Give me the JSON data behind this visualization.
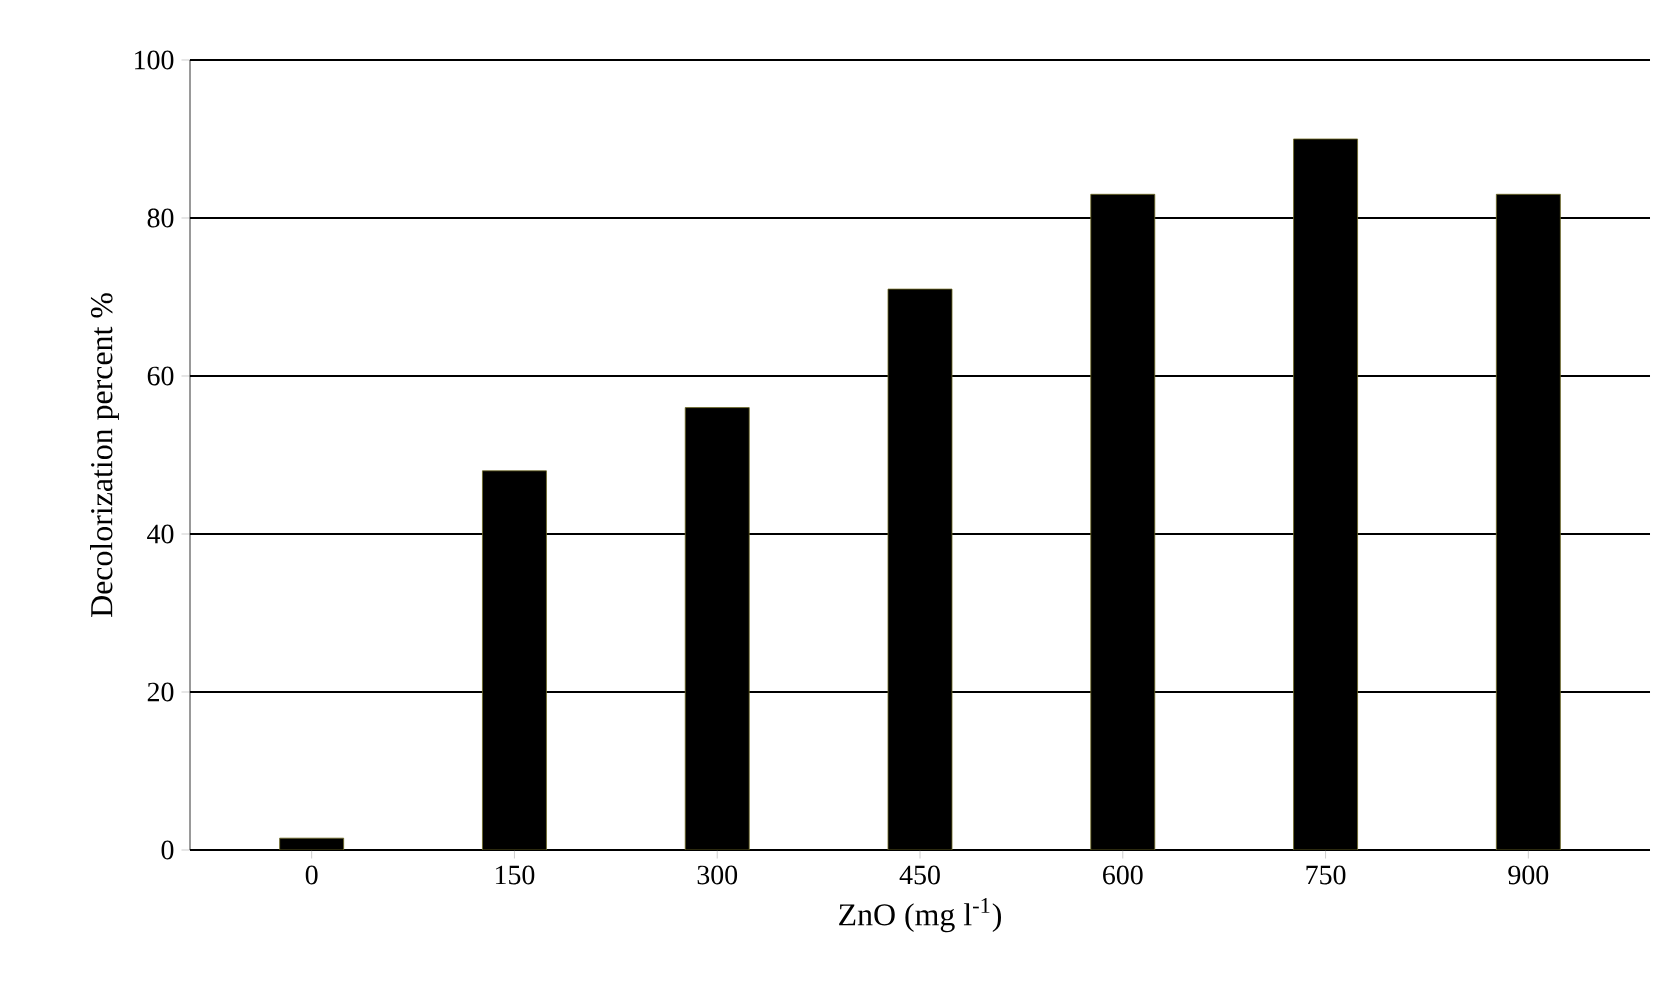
{
  "chart_data": {
    "type": "bar",
    "xlabel": "ZnO (mg l$^{-1}$)",
    "ylabel": "Decolorization percent %",
    "categories": [
      "0",
      "150",
      "300",
      "450",
      "600",
      "750",
      "900"
    ],
    "values": [
      1.5,
      48,
      56,
      71,
      83,
      90,
      83
    ],
    "color": "#000000",
    "ylim": [
      0,
      100
    ],
    "yticks": [
      0,
      20,
      40,
      60,
      80,
      100
    ],
    "grid": "y"
  }
}
